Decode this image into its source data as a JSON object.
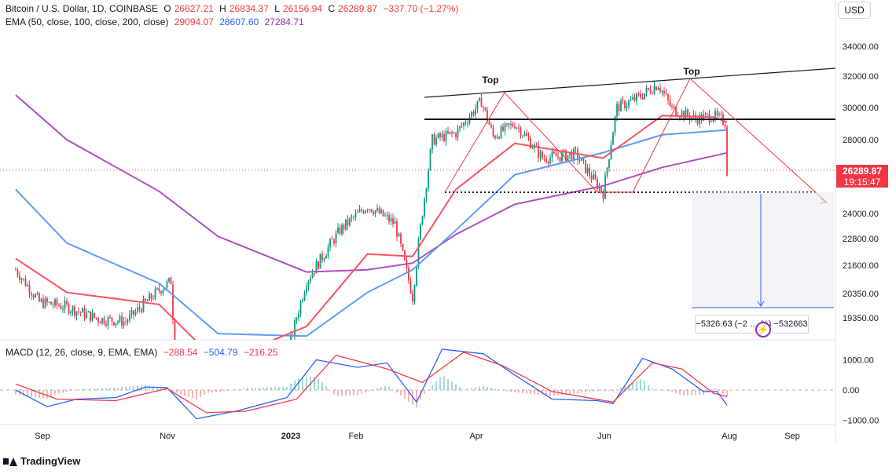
{
  "header": {
    "symbol": "Bitcoin / U.S. Dollar, 1D, COINBASE",
    "open_label": "O",
    "open": "26627.21",
    "high_label": "H",
    "high": "26834.37",
    "low_label": "L",
    "low": "26156.94",
    "close_label": "C",
    "close": "26289.87",
    "change": "−337.70 (−1.27%)",
    "ema_label": "EMA (50, close, 100, close, 200, close)",
    "ema50": "29094.07",
    "ema100": "28607.60",
    "ema200": "27284.71",
    "macd_label": "MACD (12, 26, close, 9, EMA, EMA)",
    "macd_hist": "−288.54",
    "macd_line": "−504.79",
    "macd_signal": "−216.25"
  },
  "currency_button": "USD",
  "last_price": {
    "value": "26289.87",
    "countdown": "19:15:47"
  },
  "measure_label": "−5326.63 (−2 … %) −532663",
  "annotations": {
    "top1": "Top",
    "top2": "Top"
  },
  "brand": "TradingView",
  "colors": {
    "up": "#089981",
    "down": "#f23645",
    "ema50": "#f7525f",
    "ema100": "#5b9cf6",
    "ema200": "#b04ec4",
    "macd": "#2962ff",
    "signal": "#f23645"
  },
  "chart_data": [
    {
      "type": "candlestick",
      "title": "Bitcoin / U.S. Dollar, 1D, COINBASE",
      "y_ticks": [
        "34000.00",
        "32000.00",
        "30000.00",
        "28000.00",
        "24000.00",
        "22800.00",
        "21600.00",
        "20350.00",
        "19350.00"
      ],
      "x_ticks": [
        "Sep",
        "Nov",
        "2023",
        "Feb",
        "Apr",
        "Jun",
        "Aug",
        "Sep"
      ],
      "price_series": [
        [
          "2022-08-20",
          21400
        ],
        [
          "2022-09-01",
          20000
        ],
        [
          "2022-09-15",
          19800
        ],
        [
          "2022-10-01",
          19300
        ],
        [
          "2022-10-15",
          19200
        ],
        [
          "2022-11-01",
          20500
        ],
        [
          "2022-11-07",
          20900
        ],
        [
          "2022-11-10",
          16500
        ],
        [
          "2022-12-01",
          17000
        ],
        [
          "2023-01-01",
          16600
        ],
        [
          "2023-01-15",
          20900
        ],
        [
          "2023-02-01",
          23200
        ],
        [
          "2023-02-15",
          24400
        ],
        [
          "2023-03-01",
          23500
        ],
        [
          "2023-03-10",
          20200
        ],
        [
          "2023-03-20",
          28000
        ],
        [
          "2023-04-01",
          28400
        ],
        [
          "2023-04-14",
          30400
        ],
        [
          "2023-04-20",
          28200
        ],
        [
          "2023-05-01",
          29000
        ],
        [
          "2023-05-15",
          27000
        ],
        [
          "2023-06-01",
          27200
        ],
        [
          "2023-06-15",
          25100
        ],
        [
          "2023-06-22",
          30000
        ],
        [
          "2023-07-01",
          30500
        ],
        [
          "2023-07-13",
          31500
        ],
        [
          "2023-07-20",
          29900
        ],
        [
          "2023-08-01",
          29300
        ],
        [
          "2023-08-10",
          29500
        ],
        [
          "2023-08-16",
          29100
        ],
        [
          "2023-08-17",
          26290
        ]
      ],
      "ema50": [
        [
          "2022-08-20",
          21900
        ],
        [
          "2022-09-15",
          20400
        ],
        [
          "2022-11-01",
          19900
        ],
        [
          "2022-12-01",
          17500
        ],
        [
          "2023-01-15",
          19000
        ],
        [
          "2023-02-15",
          22100
        ],
        [
          "2023-03-10",
          22000
        ],
        [
          "2023-04-01",
          25300
        ],
        [
          "2023-05-01",
          27800
        ],
        [
          "2023-06-15",
          27000
        ],
        [
          "2023-07-15",
          29500
        ],
        [
          "2023-08-10",
          29400
        ],
        [
          "2023-08-17",
          29094
        ]
      ],
      "ema100": [
        [
          "2022-08-20",
          25300
        ],
        [
          "2022-09-15",
          22600
        ],
        [
          "2022-11-01",
          20800
        ],
        [
          "2022-12-01",
          18700
        ],
        [
          "2023-01-15",
          18600
        ],
        [
          "2023-02-15",
          20400
        ],
        [
          "2023-03-10",
          21400
        ],
        [
          "2023-04-01",
          23200
        ],
        [
          "2023-05-01",
          26100
        ],
        [
          "2023-06-15",
          27300
        ],
        [
          "2023-07-15",
          28300
        ],
        [
          "2023-08-17",
          28607
        ]
      ],
      "ema200": [
        [
          "2022-08-20",
          30800
        ],
        [
          "2022-09-15",
          28000
        ],
        [
          "2022-11-01",
          25200
        ],
        [
          "2022-12-01",
          22900
        ],
        [
          "2023-01-15",
          21300
        ],
        [
          "2023-02-15",
          21400
        ],
        [
          "2023-03-10",
          21700
        ],
        [
          "2023-04-01",
          23000
        ],
        [
          "2023-05-01",
          24500
        ],
        [
          "2023-06-15",
          25500
        ],
        [
          "2023-07-15",
          26500
        ],
        [
          "2023-08-17",
          27284
        ]
      ]
    },
    {
      "type": "line",
      "title": "MACD (12, 26, close, 9, EMA, EMA)",
      "y_ticks": [
        "1000.00",
        "0.00",
        "−1000.00"
      ],
      "macd": [
        [
          "2022-08-20",
          0
        ],
        [
          "2022-09-05",
          -550
        ],
        [
          "2022-09-20",
          -300
        ],
        [
          "2022-10-10",
          -250
        ],
        [
          "2022-10-25",
          100
        ],
        [
          "2022-11-05",
          80
        ],
        [
          "2022-11-20",
          -950
        ],
        [
          "2022-12-10",
          -700
        ],
        [
          "2023-01-05",
          -250
        ],
        [
          "2023-01-20",
          1000
        ],
        [
          "2023-02-10",
          750
        ],
        [
          "2023-02-25",
          900
        ],
        [
          "2023-03-12",
          -400
        ],
        [
          "2023-03-25",
          1350
        ],
        [
          "2023-04-15",
          1200
        ],
        [
          "2023-05-01",
          500
        ],
        [
          "2023-05-20",
          -300
        ],
        [
          "2023-06-12",
          -350
        ],
        [
          "2023-06-20",
          -450
        ],
        [
          "2023-07-05",
          1050
        ],
        [
          "2023-07-20",
          700
        ],
        [
          "2023-08-05",
          -50
        ],
        [
          "2023-08-12",
          -50
        ],
        [
          "2023-08-17",
          -505
        ]
      ],
      "signal": [
        [
          "2022-08-20",
          200
        ],
        [
          "2022-09-10",
          -300
        ],
        [
          "2022-10-10",
          -350
        ],
        [
          "2022-11-05",
          50
        ],
        [
          "2022-11-25",
          -750
        ],
        [
          "2022-12-15",
          -700
        ],
        [
          "2023-01-10",
          -300
        ],
        [
          "2023-01-30",
          1150
        ],
        [
          "2023-02-25",
          700
        ],
        [
          "2023-03-15",
          250
        ],
        [
          "2023-04-05",
          1250
        ],
        [
          "2023-04-25",
          800
        ],
        [
          "2023-05-20",
          -50
        ],
        [
          "2023-06-20",
          -400
        ],
        [
          "2023-07-10",
          900
        ],
        [
          "2023-07-25",
          700
        ],
        [
          "2023-08-10",
          -100
        ],
        [
          "2023-08-17",
          -216
        ]
      ]
    }
  ]
}
